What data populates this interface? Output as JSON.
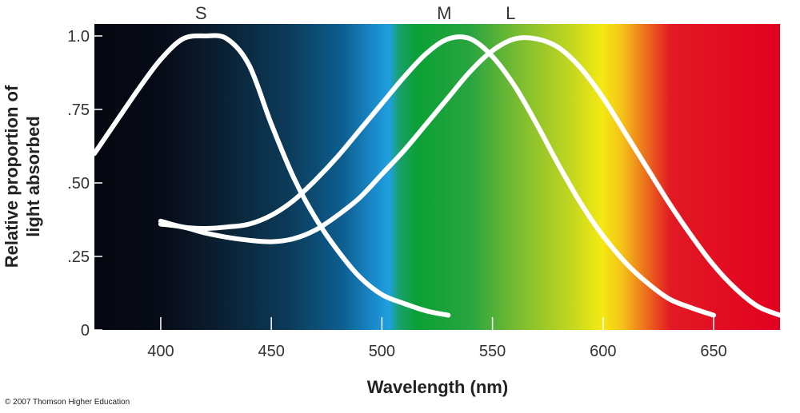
{
  "chart_data": {
    "type": "line",
    "xlabel": "Wavelength (nm)",
    "ylabel_lines": [
      "Relative proportion of",
      "light absorbed"
    ],
    "xlim": [
      370,
      680
    ],
    "ylim": [
      0,
      1.0
    ],
    "x_ticks": [
      400,
      450,
      500,
      550,
      600,
      650
    ],
    "y_ticks": [
      {
        "value": 0,
        "label": "0"
      },
      {
        "value": 0.25,
        "label": ".25"
      },
      {
        "value": 0.5,
        "label": ".50"
      },
      {
        "value": 0.75,
        "label": ".75"
      },
      {
        "value": 1.0,
        "label": "1.0"
      }
    ],
    "grid": false,
    "background": "visible color spectrum",
    "series": [
      {
        "name": "S",
        "color": "#ffffff",
        "points": [
          [
            370,
            0.6
          ],
          [
            380,
            0.71
          ],
          [
            390,
            0.82
          ],
          [
            400,
            0.92
          ],
          [
            410,
            0.99
          ],
          [
            420,
            1.0
          ],
          [
            430,
            0.99
          ],
          [
            440,
            0.9
          ],
          [
            450,
            0.7
          ],
          [
            460,
            0.52
          ],
          [
            470,
            0.38
          ],
          [
            480,
            0.27
          ],
          [
            490,
            0.18
          ],
          [
            500,
            0.12
          ],
          [
            510,
            0.09
          ],
          [
            520,
            0.065
          ],
          [
            530,
            0.05
          ]
        ]
      },
      {
        "name": "M",
        "color": "#ffffff",
        "points": [
          [
            400,
            0.37
          ],
          [
            410,
            0.35
          ],
          [
            420,
            0.345
          ],
          [
            430,
            0.35
          ],
          [
            440,
            0.36
          ],
          [
            450,
            0.39
          ],
          [
            460,
            0.44
          ],
          [
            470,
            0.51
          ],
          [
            480,
            0.59
          ],
          [
            490,
            0.68
          ],
          [
            500,
            0.77
          ],
          [
            510,
            0.86
          ],
          [
            520,
            0.94
          ],
          [
            530,
            0.99
          ],
          [
            540,
            0.99
          ],
          [
            550,
            0.93
          ],
          [
            560,
            0.83
          ],
          [
            570,
            0.7
          ],
          [
            580,
            0.56
          ],
          [
            590,
            0.43
          ],
          [
            600,
            0.32
          ],
          [
            610,
            0.23
          ],
          [
            620,
            0.16
          ],
          [
            630,
            0.105
          ],
          [
            640,
            0.075
          ],
          [
            650,
            0.05
          ]
        ]
      },
      {
        "name": "L",
        "color": "#ffffff",
        "points": [
          [
            400,
            0.36
          ],
          [
            410,
            0.35
          ],
          [
            420,
            0.33
          ],
          [
            430,
            0.315
          ],
          [
            440,
            0.305
          ],
          [
            450,
            0.3
          ],
          [
            460,
            0.31
          ],
          [
            470,
            0.34
          ],
          [
            480,
            0.39
          ],
          [
            490,
            0.45
          ],
          [
            500,
            0.53
          ],
          [
            510,
            0.61
          ],
          [
            520,
            0.7
          ],
          [
            530,
            0.79
          ],
          [
            540,
            0.88
          ],
          [
            550,
            0.95
          ],
          [
            560,
            0.99
          ],
          [
            570,
            0.99
          ],
          [
            580,
            0.96
          ],
          [
            590,
            0.89
          ],
          [
            600,
            0.79
          ],
          [
            610,
            0.67
          ],
          [
            620,
            0.55
          ],
          [
            630,
            0.43
          ],
          [
            640,
            0.32
          ],
          [
            650,
            0.22
          ],
          [
            660,
            0.14
          ],
          [
            670,
            0.08
          ],
          [
            680,
            0.05
          ]
        ]
      }
    ]
  },
  "footer": {
    "copyright": "© 2007 Thomson Higher Education"
  }
}
